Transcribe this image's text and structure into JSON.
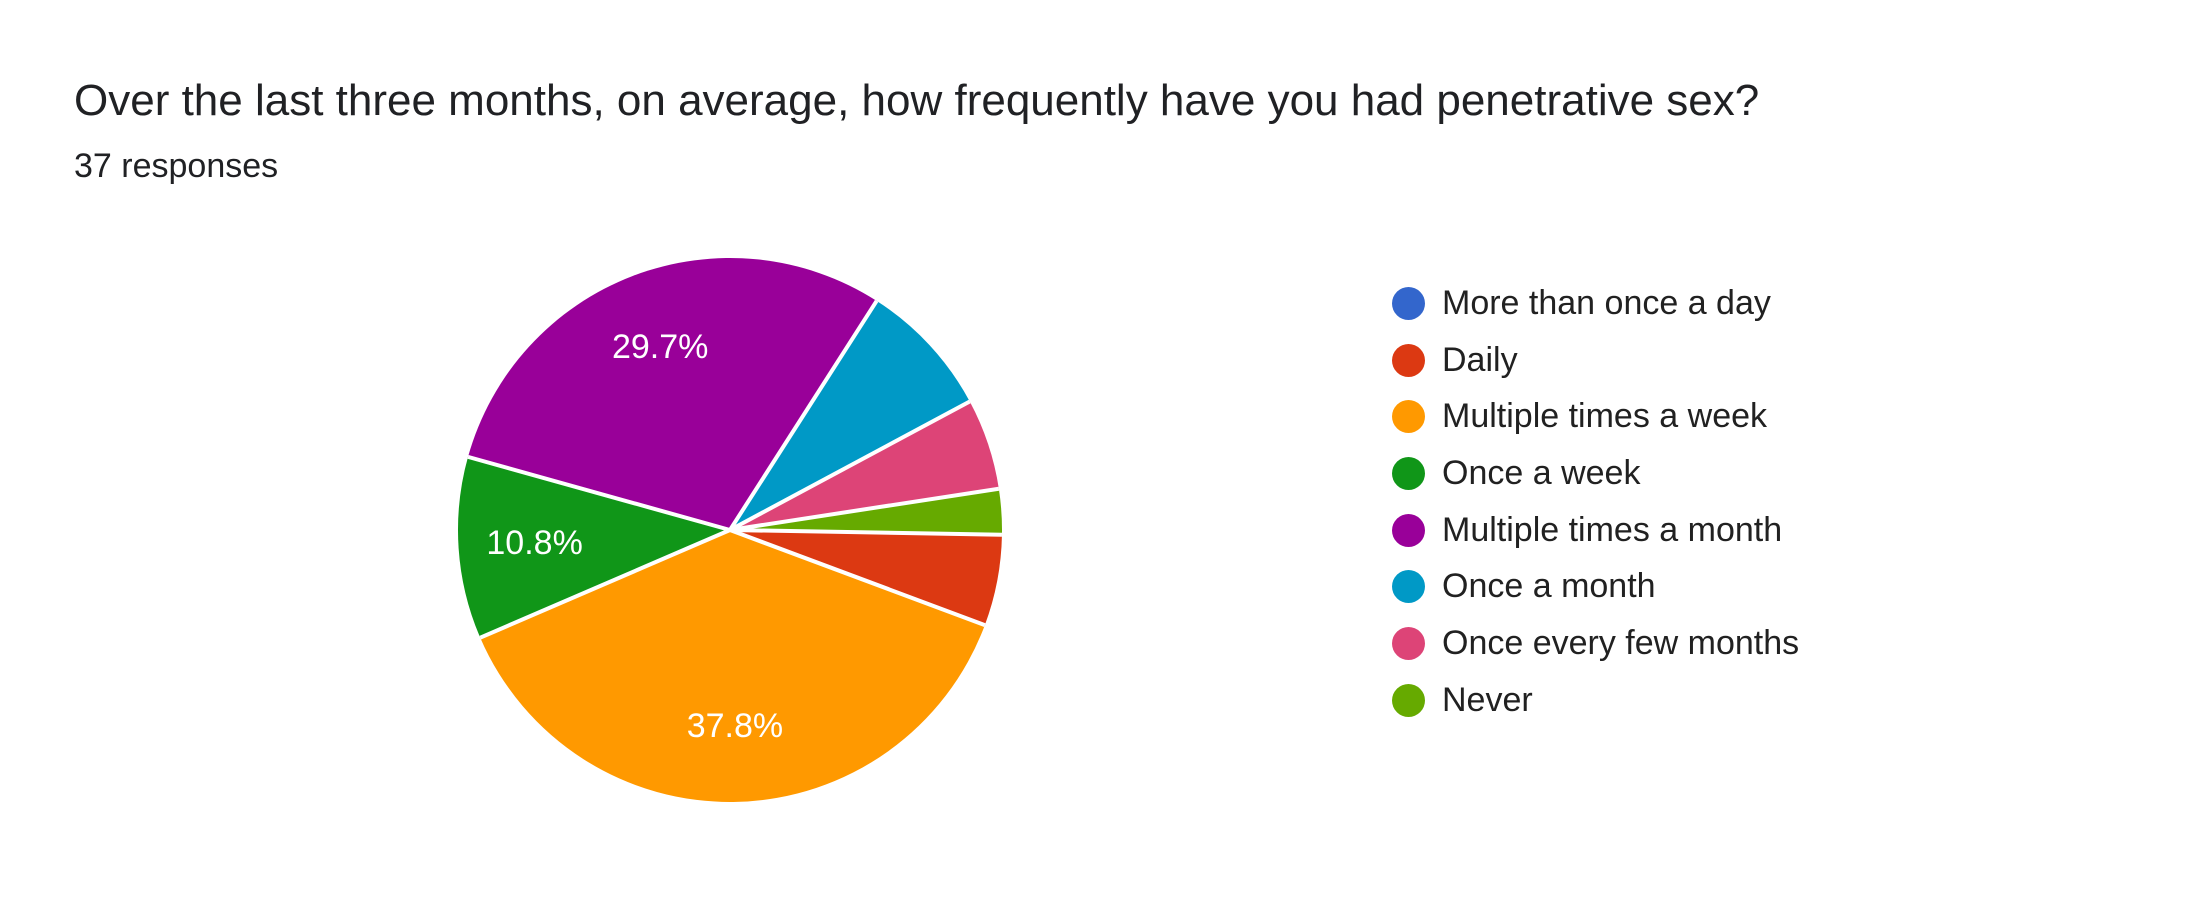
{
  "page": {
    "background": "#ffffff",
    "text_color": "#202124"
  },
  "header": {
    "title": "Over the last three months, on average, how frequently have you had penetrative sex?",
    "subtitle": "37 responses"
  },
  "chart_data": {
    "type": "pie",
    "title": "Over the last three months, on average, how frequently have you had penetrative sex?",
    "subtitle": "37 responses",
    "total_responses": 37,
    "legend_position": "right",
    "legend_marker": "circle",
    "start_angle_deg": 91,
    "slice_label_threshold_pct": 10,
    "slice_label_color": "#ffffff",
    "separator_color": "#ffffff",
    "slices": [
      {
        "label": "More than once a day",
        "color": "#3366CC",
        "pct": 0.0,
        "count": 0,
        "shown_pct_label": null
      },
      {
        "label": "Daily",
        "color": "#DC3912",
        "pct": 5.4,
        "count": 2,
        "shown_pct_label": null
      },
      {
        "label": "Multiple times a week",
        "color": "#FF9900",
        "pct": 37.8,
        "count": 14,
        "shown_pct_label": "37.8%"
      },
      {
        "label": "Once a week",
        "color": "#109618",
        "pct": 10.8,
        "count": 4,
        "shown_pct_label": "10.8%"
      },
      {
        "label": "Multiple times a month",
        "color": "#990099",
        "pct": 29.7,
        "count": 11,
        "shown_pct_label": "29.7%"
      },
      {
        "label": "Once a month",
        "color": "#0099C6",
        "pct": 8.1,
        "count": 3,
        "shown_pct_label": null
      },
      {
        "label": "Once every few months",
        "color": "#DD4477",
        "pct": 5.4,
        "count": 2,
        "shown_pct_label": null
      },
      {
        "label": "Never",
        "color": "#66AA00",
        "pct": 2.7,
        "count": 1,
        "shown_pct_label": null
      }
    ]
  }
}
